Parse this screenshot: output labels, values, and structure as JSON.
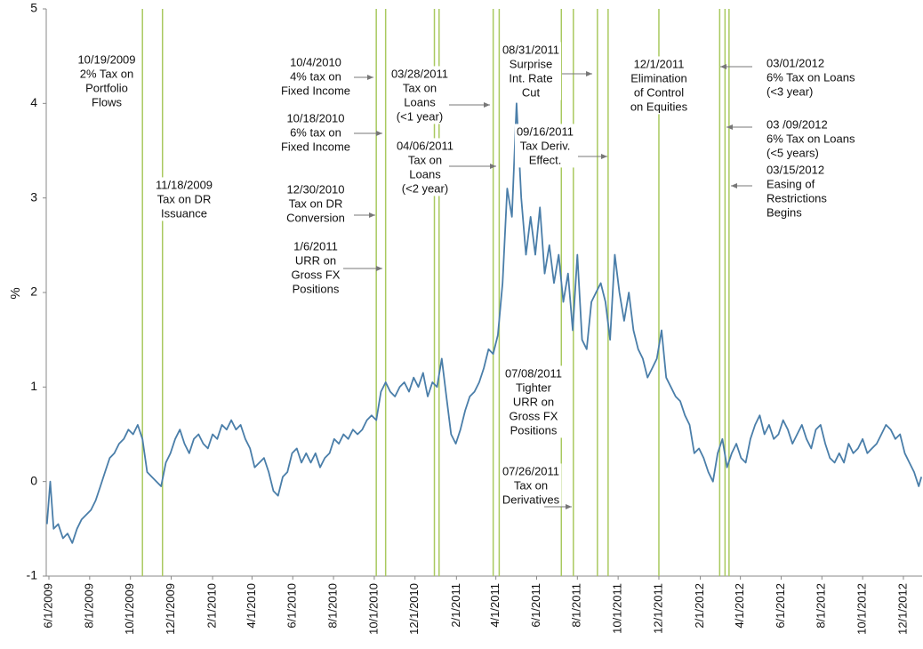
{
  "chart_data": {
    "type": "line",
    "y_label": "%",
    "xlim": [
      "5/28/2009",
      "12/29/2012"
    ],
    "xticks": [
      "6/1/2009",
      "8/1/2009",
      "10/1/2009",
      "12/1/2009",
      "2/1/2010",
      "4/1/2010",
      "6/1/2010",
      "8/1/2010",
      "10/1/2010",
      "12/1/2010",
      "2/1/2011",
      "4/1/2011",
      "6/1/2011",
      "8/1/2011",
      "10/1/2011",
      "12/1/2011",
      "2/1/2012",
      "4/1/2012",
      "6/1/2012",
      "8/1/2012",
      "10/1/2012",
      "12/1/2012"
    ],
    "ylim": [
      -1,
      5
    ],
    "yticks": [
      -1,
      0,
      1,
      2,
      3,
      4,
      5
    ],
    "series": [
      {
        "color": "#4a7ea9",
        "x": [
          "5/29/2009",
          "6/3/2009",
          "6/8/2009",
          "6/15/2009",
          "6/22/2009",
          "6/29/2009",
          "7/6/2009",
          "7/13/2009",
          "7/20/2009",
          "7/27/2009",
          "8/3/2009",
          "8/10/2009",
          "8/17/2009",
          "8/24/2009",
          "8/31/2009",
          "9/7/2009",
          "9/14/2009",
          "9/21/2009",
          "9/28/2009",
          "10/5/2009",
          "10/12/2009",
          "10/19/2009",
          "10/26/2009",
          "11/2/2009",
          "11/9/2009",
          "11/16/2009",
          "11/23/2009",
          "11/30/2009",
          "12/7/2009",
          "12/14/2009",
          "12/21/2009",
          "12/28/2009",
          "1/4/2010",
          "1/11/2010",
          "1/18/2010",
          "1/25/2010",
          "2/1/2010",
          "2/8/2010",
          "2/15/2010",
          "2/22/2010",
          "3/1/2010",
          "3/8/2010",
          "3/15/2010",
          "3/22/2010",
          "3/29/2010",
          "4/5/2010",
          "4/12/2010",
          "4/19/2010",
          "4/26/2010",
          "5/3/2010",
          "5/10/2010",
          "5/17/2010",
          "5/24/2010",
          "5/31/2010",
          "6/7/2010",
          "6/14/2010",
          "6/21/2010",
          "6/28/2010",
          "7/5/2010",
          "7/12/2010",
          "7/19/2010",
          "7/26/2010",
          "8/2/2010",
          "8/9/2010",
          "8/16/2010",
          "8/23/2010",
          "8/30/2010",
          "9/6/2010",
          "9/13/2010",
          "9/20/2010",
          "9/27/2010",
          "10/4/2010",
          "10/11/2010",
          "10/18/2010",
          "10/25/2010",
          "11/1/2010",
          "11/8/2010",
          "11/15/2010",
          "11/22/2010",
          "11/29/2010",
          "12/6/2010",
          "12/13/2010",
          "12/20/2010",
          "12/27/2010",
          "1/3/2011",
          "1/10/2011",
          "1/17/2011",
          "1/24/2011",
          "1/31/2011",
          "2/7/2011",
          "2/14/2011",
          "2/21/2011",
          "2/28/2011",
          "3/7/2011",
          "3/14/2011",
          "3/21/2011",
          "3/28/2011",
          "4/4/2011",
          "4/11/2011",
          "4/18/2011",
          "4/25/2011",
          "5/2/2011",
          "5/9/2011",
          "5/16/2011",
          "5/23/2011",
          "5/30/2011",
          "6/6/2011",
          "6/13/2011",
          "6/20/2011",
          "6/27/2011",
          "7/4/2011",
          "7/11/2011",
          "7/18/2011",
          "7/25/2011",
          "8/1/2011",
          "8/8/2011",
          "8/15/2011",
          "8/22/2011",
          "8/29/2011",
          "9/5/2011",
          "9/12/2011",
          "9/19/2011",
          "9/26/2011",
          "10/3/2011",
          "10/10/2011",
          "10/17/2011",
          "10/24/2011",
          "10/31/2011",
          "11/7/2011",
          "11/14/2011",
          "11/21/2011",
          "11/28/2011",
          "12/5/2011",
          "12/12/2011",
          "12/19/2011",
          "12/26/2011",
          "1/2/2012",
          "1/9/2012",
          "1/16/2012",
          "1/23/2012",
          "1/30/2012",
          "2/6/2012",
          "2/13/2012",
          "2/20/2012",
          "2/27/2012",
          "3/5/2012",
          "3/12/2012",
          "3/19/2012",
          "3/26/2012",
          "4/2/2012",
          "4/9/2012",
          "4/16/2012",
          "4/23/2012",
          "4/30/2012",
          "5/7/2012",
          "5/14/2012",
          "5/21/2012",
          "5/28/2012",
          "6/4/2012",
          "6/11/2012",
          "6/18/2012",
          "6/25/2012",
          "7/2/2012",
          "7/9/2012",
          "7/16/2012",
          "7/23/2012",
          "7/30/2012",
          "8/6/2012",
          "8/13/2012",
          "8/20/2012",
          "8/27/2012",
          "9/3/2012",
          "9/10/2012",
          "9/17/2012",
          "9/24/2012",
          "10/1/2012",
          "10/8/2012",
          "10/15/2012",
          "10/22/2012",
          "10/29/2012",
          "11/5/2012",
          "11/12/2012",
          "11/19/2012",
          "11/26/2012",
          "12/3/2012",
          "12/10/2012",
          "12/17/2012",
          "12/24/2012",
          "12/28/2012"
        ],
        "values": [
          -0.45,
          0.0,
          -0.5,
          -0.45,
          -0.6,
          -0.55,
          -0.65,
          -0.5,
          -0.4,
          -0.35,
          -0.3,
          -0.2,
          -0.05,
          0.1,
          0.25,
          0.3,
          0.4,
          0.45,
          0.55,
          0.5,
          0.6,
          0.45,
          0.1,
          0.05,
          0.0,
          -0.05,
          0.2,
          0.3,
          0.45,
          0.55,
          0.4,
          0.3,
          0.45,
          0.5,
          0.4,
          0.35,
          0.5,
          0.45,
          0.6,
          0.55,
          0.65,
          0.55,
          0.6,
          0.45,
          0.35,
          0.15,
          0.2,
          0.25,
          0.1,
          -0.1,
          -0.15,
          0.05,
          0.1,
          0.3,
          0.35,
          0.2,
          0.3,
          0.2,
          0.3,
          0.15,
          0.25,
          0.3,
          0.45,
          0.4,
          0.5,
          0.45,
          0.55,
          0.5,
          0.55,
          0.65,
          0.7,
          0.65,
          0.95,
          1.05,
          0.95,
          0.9,
          1.0,
          1.05,
          0.95,
          1.1,
          1.0,
          1.15,
          0.9,
          1.05,
          1.0,
          1.3,
          0.9,
          0.5,
          0.4,
          0.55,
          0.75,
          0.9,
          0.95,
          1.05,
          1.2,
          1.4,
          1.35,
          1.55,
          2.1,
          3.1,
          2.8,
          4.0,
          3.0,
          2.4,
          2.8,
          2.4,
          2.9,
          2.2,
          2.5,
          2.1,
          2.4,
          1.9,
          2.2,
          1.6,
          2.4,
          1.5,
          1.4,
          1.9,
          2.0,
          2.1,
          1.9,
          1.5,
          2.4,
          2.0,
          1.7,
          2.0,
          1.6,
          1.4,
          1.3,
          1.1,
          1.2,
          1.3,
          1.6,
          1.1,
          1.0,
          0.9,
          0.85,
          0.7,
          0.6,
          0.3,
          0.35,
          0.25,
          0.1,
          0.0,
          0.3,
          0.45,
          0.15,
          0.3,
          0.4,
          0.25,
          0.2,
          0.45,
          0.6,
          0.7,
          0.5,
          0.6,
          0.45,
          0.5,
          0.65,
          0.55,
          0.4,
          0.5,
          0.6,
          0.45,
          0.35,
          0.55,
          0.6,
          0.4,
          0.25,
          0.2,
          0.3,
          0.2,
          0.4,
          0.3,
          0.35,
          0.45,
          0.3,
          0.35,
          0.4,
          0.5,
          0.6,
          0.55,
          0.45,
          0.5,
          0.3,
          0.2,
          0.1,
          -0.05,
          0.05
        ]
      }
    ],
    "event_color": "#a9c95f",
    "events": [
      {
        "x": "10/19/2009",
        "label": [
          "10/19/2009",
          "2% Tax on",
          "Portfolio",
          "Flows"
        ]
      },
      {
        "x": "11/18/2009",
        "label": [
          "11/18/2009",
          "Tax on DR",
          "Issuance"
        ]
      },
      {
        "x": "10/4/2010",
        "label": [
          "10/4/2010",
          "4% tax on",
          "Fixed Income"
        ]
      },
      {
        "x": "10/18/2010",
        "label": [
          "10/18/2010",
          "6% tax on",
          "Fixed Income"
        ]
      },
      {
        "x": "12/30/2010",
        "label": [
          "12/30/2010",
          "Tax on DR",
          "Conversion"
        ]
      },
      {
        "x": "1/6/2011",
        "label": [
          "1/6/2011",
          "URR on",
          "Gross FX",
          "Positions"
        ]
      },
      {
        "x": "3/28/2011",
        "label": [
          "03/28/2011",
          "Tax on",
          "Loans",
          "(<1 year)"
        ]
      },
      {
        "x": "4/6/2011",
        "label": [
          "04/06/2011",
          "Tax on",
          "Loans",
          "(<2 year)"
        ]
      },
      {
        "x": "7/8/2011",
        "label": [
          "07/08/2011",
          "Tighter",
          "URR on",
          "Gross FX",
          "Positions"
        ]
      },
      {
        "x": "7/26/2011",
        "label": [
          "07/26/2011",
          "Tax on",
          "Derivatives"
        ]
      },
      {
        "x": "8/31/2011",
        "label": [
          "08/31/2011",
          "Surprise",
          "Int. Rate",
          "Cut"
        ]
      },
      {
        "x": "9/16/2011",
        "label": [
          "09/16/2011",
          "Tax Deriv.",
          "Effect."
        ]
      },
      {
        "x": "12/1/2011",
        "label": [
          "12/1/2011",
          "Elimination",
          "of Control",
          "on Equities"
        ]
      },
      {
        "x": "3/1/2012",
        "label": [
          "03/01/2012",
          "6% Tax on Loans",
          "(<3 year)"
        ]
      },
      {
        "x": "3/9/2012",
        "label": [
          "03 /09/2012",
          "6% Tax on Loans",
          "(<5 years)"
        ]
      },
      {
        "x": "3/15/2012",
        "label": [
          "03/15/2012",
          "Easing of",
          "Restrictions",
          "Begins"
        ]
      }
    ]
  }
}
